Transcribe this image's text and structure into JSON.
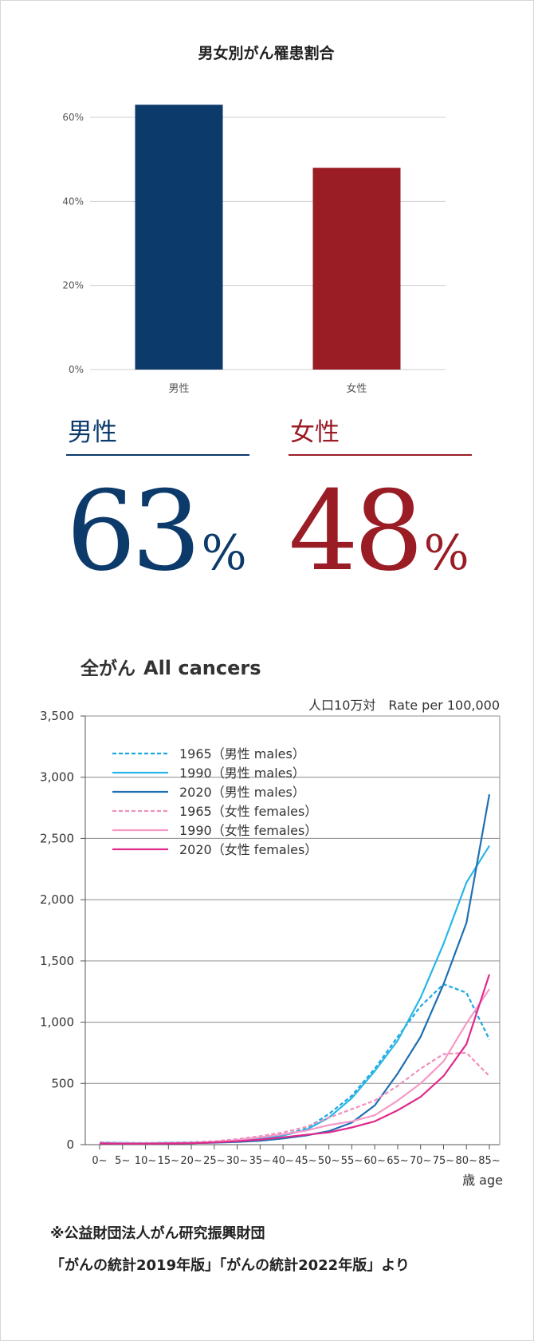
{
  "bar_chart": {
    "title": "男女別がん罹患割合",
    "axis_color": "#cfcfcf"
  },
  "stats": {
    "male": {
      "label": "男性",
      "value": "63",
      "unit": "%",
      "color": "#0b3a6b"
    },
    "female": {
      "label": "女性",
      "value": "48",
      "unit": "%",
      "color": "#9a1c25"
    }
  },
  "line_chart_header": {
    "title_jp": "全がん",
    "title_en": "All cancers",
    "subtitle": "人口10万対　Rate per 100,000",
    "x_unit": "歳 age"
  },
  "chart_data": [
    {
      "type": "bar",
      "title": "男女別がん罹患割合",
      "categories": [
        "男性",
        "女性"
      ],
      "values": [
        63,
        48
      ],
      "unit": "%",
      "colors": [
        "#0b3a6b",
        "#9a1c25"
      ],
      "ylim": [
        0,
        60
      ],
      "yticks": [
        0,
        20,
        40,
        60
      ],
      "ytick_labels": [
        "0%",
        "20%",
        "40%",
        "60%"
      ],
      "grid": true,
      "legend": "none"
    },
    {
      "type": "line",
      "title": "全がん All cancers",
      "ylabel": "人口10万対　Rate per 100,000",
      "xlabel": "歳 age",
      "categories": [
        "0~",
        "5~",
        "10~",
        "15~",
        "20~",
        "25~",
        "30~",
        "35~",
        "40~",
        "45~",
        "50~",
        "55~",
        "60~",
        "65~",
        "70~",
        "75~",
        "80~",
        "85~"
      ],
      "ylim": [
        0,
        3500
      ],
      "yticks": [
        0,
        500,
        1000,
        1500,
        2000,
        2500,
        3000,
        3500
      ],
      "ytick_labels": [
        "0",
        "500",
        "1,000",
        "1,500",
        "2,000",
        "2,500",
        "3,000",
        "3,500"
      ],
      "grid": true,
      "legend": "top-left",
      "series": [
        {
          "name": "1965（男性 males）",
          "color": "#1aa9e0",
          "dash": true,
          "values": [
            18,
            15,
            14,
            16,
            20,
            25,
            35,
            55,
            80,
            130,
            250,
            400,
            620,
            880,
            1130,
            1310,
            1240,
            860
          ]
        },
        {
          "name": "1990（男性 males）",
          "color": "#29b6e6",
          "dash": false,
          "values": [
            15,
            13,
            12,
            14,
            16,
            20,
            30,
            45,
            75,
            120,
            220,
            380,
            600,
            850,
            1200,
            1640,
            2140,
            2440
          ]
        },
        {
          "name": "2020（男性 males）",
          "color": "#1f6fb2",
          "dash": false,
          "values": [
            12,
            10,
            9,
            10,
            12,
            16,
            22,
            32,
            50,
            75,
            110,
            180,
            320,
            580,
            880,
            1310,
            1810,
            2860
          ]
        },
        {
          "name": "1965（女性 females）",
          "color": "#ef8fbd",
          "dash": true,
          "values": [
            15,
            12,
            12,
            14,
            18,
            28,
            45,
            70,
            100,
            145,
            220,
            290,
            360,
            480,
            620,
            740,
            750,
            560
          ]
        },
        {
          "name": "1990（女性 females）",
          "color": "#f59ac7",
          "dash": false,
          "values": [
            12,
            10,
            10,
            12,
            15,
            22,
            38,
            60,
            85,
            115,
            160,
            190,
            240,
            360,
            500,
            680,
            990,
            1270
          ]
        },
        {
          "name": "2020（女性 females）",
          "color": "#e0298b",
          "dash": false,
          "values": [
            10,
            8,
            8,
            10,
            12,
            18,
            28,
            42,
            60,
            80,
            100,
            140,
            190,
            280,
            390,
            560,
            820,
            1390
          ]
        }
      ]
    }
  ],
  "source": {
    "line1": "※公益財団法人がん研究振興財団",
    "line2": "「がんの統計2019年版」「がんの統計2022年版」より"
  }
}
